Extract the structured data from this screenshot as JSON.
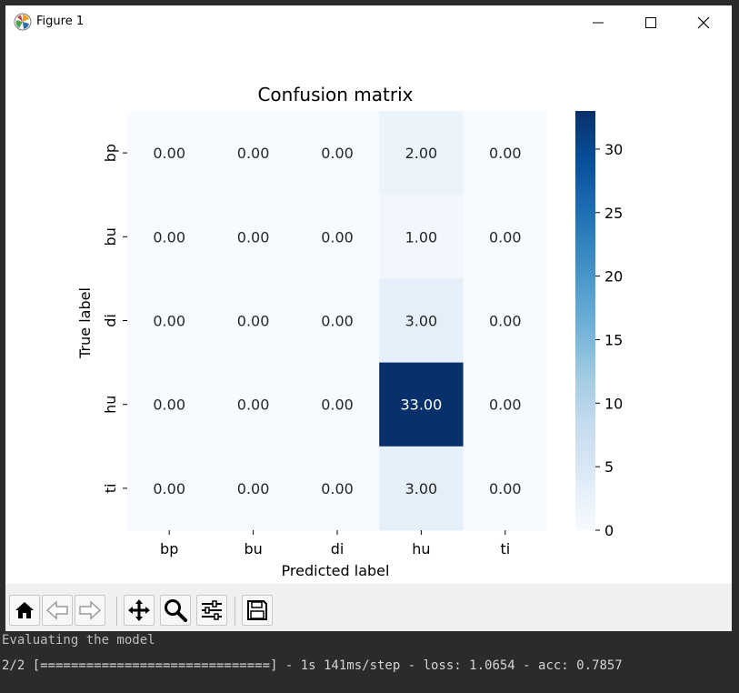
{
  "window": {
    "title": "Figure 1",
    "controls": [
      "minimize",
      "maximize",
      "close"
    ]
  },
  "chart_data": {
    "type": "heatmap",
    "title": "Confusion matrix",
    "xlabel": "Predicted label",
    "ylabel": "True label",
    "x_categories": [
      "bp",
      "bu",
      "di",
      "hu",
      "ti"
    ],
    "y_categories": [
      "bp",
      "bu",
      "di",
      "hu",
      "ti"
    ],
    "values": [
      [
        0.0,
        0.0,
        0.0,
        2.0,
        0.0
      ],
      [
        0.0,
        0.0,
        0.0,
        1.0,
        0.0
      ],
      [
        0.0,
        0.0,
        0.0,
        3.0,
        0.0
      ],
      [
        0.0,
        0.0,
        0.0,
        33.0,
        0.0
      ],
      [
        0.0,
        0.0,
        0.0,
        3.0,
        0.0
      ]
    ],
    "value_format": "0.00",
    "colormap": "Blues",
    "colorbar": {
      "min": 0,
      "max": 33,
      "ticks": [
        0,
        5,
        10,
        15,
        20,
        25,
        30
      ]
    }
  },
  "toolbar": {
    "buttons": [
      "home-icon",
      "back-icon",
      "forward-icon",
      "pan-icon",
      "zoom-icon",
      "configure-subplots-icon",
      "save-icon"
    ]
  },
  "console": {
    "line1": "Evaluating the model",
    "line2": "2/2 [==============================] - 1s 141ms/step - loss: 1.0654 - acc: 0.7857"
  },
  "colors": {
    "cmap_low": "#f7fbff",
    "cmap_high": "#08306b",
    "text_dark": "#262626",
    "text_light": "#ffffff"
  }
}
